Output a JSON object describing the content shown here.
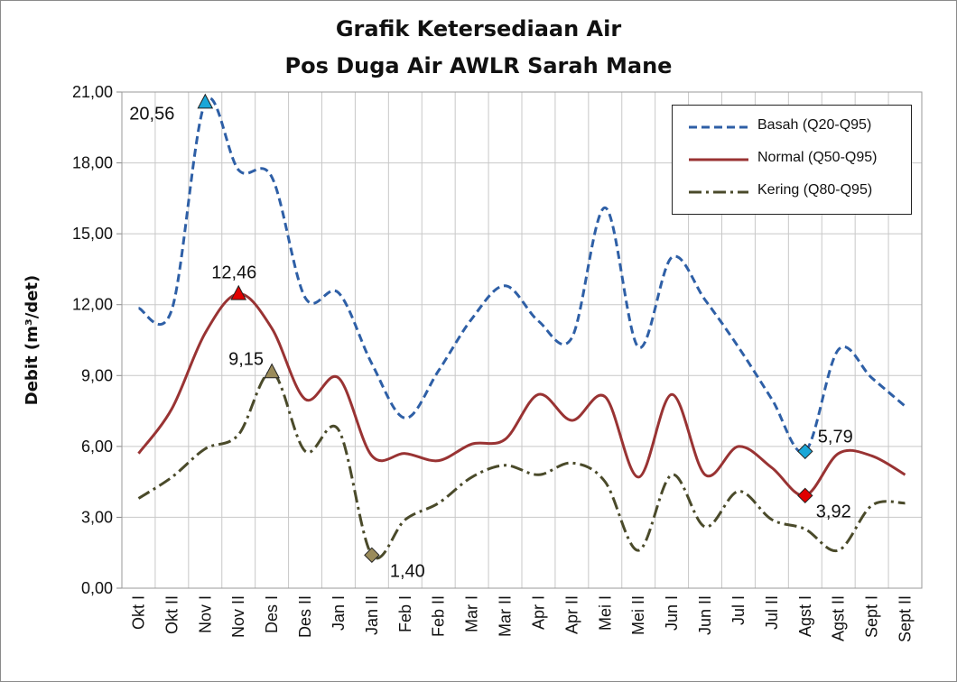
{
  "chart_data": {
    "type": "line",
    "title": "Grafik Ketersediaan Air",
    "subtitle": "Pos Duga Air AWLR Sarah Mane",
    "ylabel": "Debit (m³/det)",
    "xlabel": "",
    "ylim": [
      0,
      21
    ],
    "yticks": [
      "0,00",
      "3,00",
      "6,00",
      "9,00",
      "12,00",
      "15,00",
      "18,00",
      "21,00"
    ],
    "categories": [
      "Okt I",
      "Okt II",
      "Nov I",
      "Nov II",
      "Des I",
      "Des II",
      "Jan I",
      "Jan II",
      "Feb I",
      "Feb II",
      "Mar I",
      "Mar II",
      "Apr I",
      "Apr II",
      "Mei I",
      "Mei II",
      "Jun I",
      "Jun II",
      "Jul I",
      "Jul II",
      "Agst I",
      "Agst II",
      "Sept I",
      "Sept II"
    ],
    "grid": true,
    "legend_position": "top-right",
    "series": [
      {
        "name": "Basah (Q20-Q95)",
        "color": "#2e5fa6",
        "style": "dashed",
        "values": [
          11.85,
          11.8,
          20.56,
          17.7,
          17.4,
          12.3,
          12.5,
          9.5,
          7.2,
          9.2,
          11.4,
          12.8,
          11.3,
          10.6,
          16.1,
          10.2,
          14.0,
          12.2,
          10.2,
          8.0,
          5.79,
          10.1,
          8.9,
          7.7
        ]
      },
      {
        "name": "Normal (Q50-Q95)",
        "color": "#993333",
        "style": "solid",
        "values": [
          5.7,
          7.6,
          10.8,
          12.46,
          11.0,
          8.0,
          8.9,
          5.6,
          5.7,
          5.4,
          6.1,
          6.3,
          8.2,
          7.1,
          8.1,
          4.7,
          8.2,
          4.8,
          6.0,
          5.1,
          3.92,
          5.7,
          5.6,
          4.8
        ]
      },
      {
        "name": "Kering (Q80-Q95)",
        "color": "#4a4a2a",
        "style": "dashdot",
        "values": [
          3.8,
          4.7,
          5.9,
          6.5,
          9.15,
          5.8,
          6.7,
          1.4,
          2.9,
          3.6,
          4.7,
          5.2,
          4.8,
          5.3,
          4.5,
          1.6,
          4.8,
          2.6,
          4.1,
          2.9,
          2.5,
          1.6,
          3.5,
          3.6
        ]
      }
    ],
    "annotations": [
      {
        "series": 0,
        "index": 2,
        "label": "20,56",
        "marker": "triangle",
        "color": "#1aa7d8"
      },
      {
        "series": 1,
        "index": 3,
        "label": "12,46",
        "marker": "triangle",
        "color": "#e00000"
      },
      {
        "series": 2,
        "index": 4,
        "label": "9,15",
        "marker": "triangle",
        "color": "#9a8b5a"
      },
      {
        "series": 2,
        "index": 7,
        "label": "1,40",
        "marker": "diamond",
        "color": "#9a8b5a"
      },
      {
        "series": 0,
        "index": 20,
        "label": "5,79",
        "marker": "diamond",
        "color": "#1aa7d8"
      },
      {
        "series": 1,
        "index": 20,
        "label": "3,92",
        "marker": "diamond",
        "color": "#e00000"
      }
    ]
  }
}
